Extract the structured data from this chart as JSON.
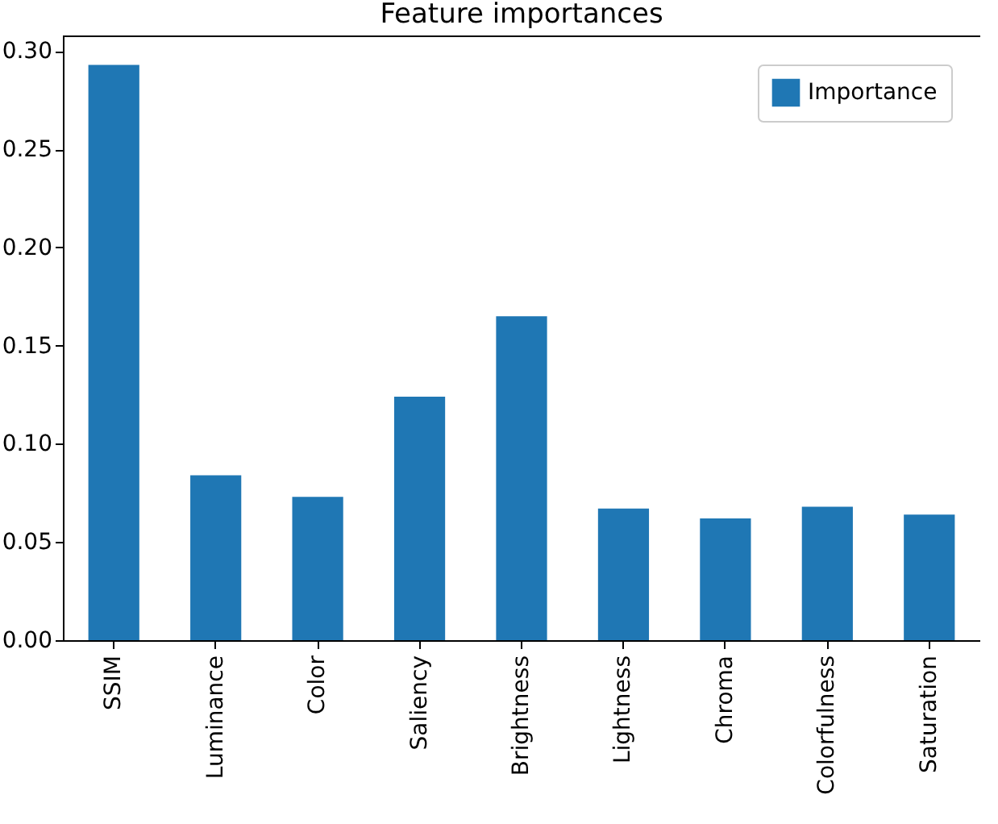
{
  "chart_data": {
    "type": "bar",
    "title": "Feature importances",
    "categories": [
      "SSIM",
      "Luminance",
      "Color",
      "Saliency",
      "Brightness",
      "Lightness",
      "Chroma",
      "Colorfulness",
      "Saturation"
    ],
    "series": [
      {
        "name": "Importance",
        "color": "#1f77b4",
        "values": [
          0.293,
          0.084,
          0.073,
          0.124,
          0.165,
          0.067,
          0.062,
          0.068,
          0.064
        ]
      }
    ],
    "ylim": [
      0,
      0.308
    ],
    "yticks": [
      {
        "value": 0,
        "label": "0.00"
      },
      {
        "value": 0.05,
        "label": "0.05"
      },
      {
        "value": 0.1,
        "label": "0.10"
      },
      {
        "value": 0.15,
        "label": "0.15"
      },
      {
        "value": 0.2,
        "label": "0.20"
      },
      {
        "value": 0.25,
        "label": "0.25"
      },
      {
        "value": 0.3,
        "label": "0.30"
      }
    ],
    "grid": false,
    "legend": "top right"
  }
}
